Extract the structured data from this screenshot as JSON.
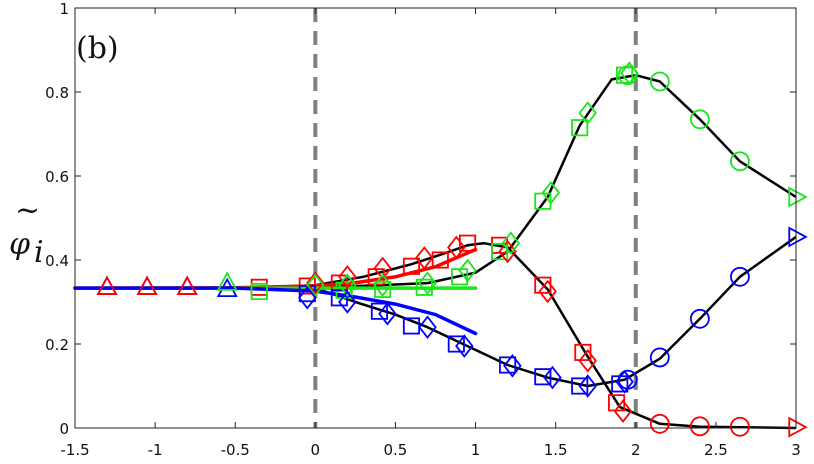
{
  "chart_data": {
    "type": "line",
    "panel_label": "(b)",
    "ylabel_symbol": "~",
    "ylabel_main": "φ",
    "ylabel_sub": "i",
    "xlim": [
      -1.5,
      3
    ],
    "ylim": [
      0,
      1
    ],
    "xticks": [
      -1.5,
      -1,
      -0.5,
      0,
      0.5,
      1,
      1.5,
      2,
      2.5,
      3
    ],
    "xtick_labels": [
      "-1.5",
      "-1",
      "-0.5",
      "0",
      "0.5",
      "1",
      "1.5",
      "2",
      "2.5",
      "3"
    ],
    "yticks": [
      0,
      0.2,
      0.4,
      0.6,
      0.8,
      1
    ],
    "ytick_labels": [
      "0",
      "0.2",
      "0.4",
      "0.6",
      "0.8",
      "1"
    ],
    "vlines": [
      0,
      2
    ],
    "colors": {
      "red": "#ff0000",
      "green": "#19e619",
      "blue": "#0000ff",
      "black": "#000000",
      "dashed": "#808080"
    },
    "black_lines": [
      [
        [
          -1.5,
          0.333
        ],
        [
          -1.0,
          0.333
        ],
        [
          -0.5,
          0.333
        ],
        [
          0,
          0.333
        ],
        [
          0.25,
          0.3
        ],
        [
          0.5,
          0.27
        ],
        [
          0.7,
          0.24
        ],
        [
          0.95,
          0.195
        ],
        [
          1.2,
          0.15
        ],
        [
          1.45,
          0.12
        ],
        [
          1.7,
          0.1
        ],
        [
          1.93,
          0.115
        ],
        [
          2.15,
          0.165
        ],
        [
          2.4,
          0.26
        ],
        [
          2.65,
          0.36
        ],
        [
          3.0,
          0.455
        ]
      ],
      [
        [
          -1.5,
          0.333
        ],
        [
          -0.5,
          0.333
        ],
        [
          0,
          0.34
        ],
        [
          0.3,
          0.36
        ],
        [
          0.6,
          0.39
        ],
        [
          0.8,
          0.415
        ],
        [
          0.95,
          0.435
        ],
        [
          1.05,
          0.44
        ],
        [
          1.2,
          0.43
        ],
        [
          1.45,
          0.33
        ],
        [
          1.7,
          0.17
        ],
        [
          1.9,
          0.05
        ],
        [
          2.15,
          0.01
        ],
        [
          2.4,
          0.003
        ],
        [
          3.0,
          0.0
        ]
      ],
      [
        [
          -1.5,
          0.333
        ],
        [
          -0.5,
          0.333
        ],
        [
          0,
          0.335
        ],
        [
          0.4,
          0.34
        ],
        [
          0.7,
          0.345
        ],
        [
          1.0,
          0.37
        ],
        [
          1.2,
          0.42
        ],
        [
          1.45,
          0.55
        ],
        [
          1.65,
          0.72
        ],
        [
          1.85,
          0.83
        ],
        [
          2.0,
          0.84
        ],
        [
          2.15,
          0.825
        ],
        [
          2.4,
          0.735
        ],
        [
          2.65,
          0.635
        ],
        [
          3.0,
          0.55
        ]
      ]
    ],
    "theory_lines": [
      {
        "color": "red",
        "points": [
          [
            -1.5,
            0.333
          ],
          [
            -0.5,
            0.334
          ],
          [
            0,
            0.338
          ],
          [
            0.25,
            0.346
          ],
          [
            0.5,
            0.36
          ],
          [
            0.75,
            0.384
          ],
          [
            1.0,
            0.425
          ]
        ]
      },
      {
        "color": "green",
        "points": [
          [
            -1.5,
            0.333
          ],
          [
            0,
            0.333
          ],
          [
            0.5,
            0.333
          ],
          [
            1.0,
            0.333
          ]
        ]
      },
      {
        "color": "blue",
        "points": [
          [
            -1.5,
            0.333
          ],
          [
            -0.5,
            0.333
          ],
          [
            0,
            0.326
          ],
          [
            0.25,
            0.312
          ],
          [
            0.5,
            0.295
          ],
          [
            0.75,
            0.27
          ],
          [
            1.0,
            0.225
          ]
        ]
      }
    ],
    "series": [
      {
        "marker": "triangle-up",
        "color": "blue",
        "points": [
          [
            -1.3,
            0.335
          ],
          [
            -1.05,
            0.335
          ],
          [
            -0.8,
            0.335
          ],
          [
            -0.55,
            0.33
          ]
        ]
      },
      {
        "marker": "triangle-up",
        "color": "red",
        "points": [
          [
            -1.3,
            0.335
          ],
          [
            -1.05,
            0.335
          ],
          [
            -0.8,
            0.335
          ]
        ]
      },
      {
        "marker": "triangle-up",
        "color": "green",
        "points": [
          [
            -0.55,
            0.345
          ]
        ]
      },
      {
        "marker": "square",
        "color": "red",
        "points": [
          [
            -0.35,
            0.335
          ],
          [
            -0.05,
            0.338
          ],
          [
            0.15,
            0.345
          ],
          [
            0.38,
            0.36
          ],
          [
            0.6,
            0.385
          ],
          [
            0.78,
            0.4
          ],
          [
            0.95,
            0.44
          ],
          [
            1.15,
            0.435
          ],
          [
            1.42,
            0.34
          ],
          [
            1.67,
            0.18
          ],
          [
            1.88,
            0.06
          ]
        ]
      },
      {
        "marker": "square",
        "color": "green",
        "points": [
          [
            -0.35,
            0.325
          ],
          [
            0.18,
            0.328
          ],
          [
            0.42,
            0.33
          ],
          [
            0.68,
            0.335
          ],
          [
            0.9,
            0.36
          ],
          [
            1.15,
            0.42
          ],
          [
            1.42,
            0.54
          ],
          [
            1.65,
            0.715
          ],
          [
            1.93,
            0.84
          ]
        ]
      },
      {
        "marker": "square",
        "color": "blue",
        "points": [
          [
            -0.05,
            0.32
          ],
          [
            0.15,
            0.31
          ],
          [
            0.4,
            0.278
          ],
          [
            0.6,
            0.243
          ],
          [
            0.88,
            0.2
          ],
          [
            1.2,
            0.15
          ],
          [
            1.42,
            0.122
          ],
          [
            1.65,
            0.1
          ],
          [
            1.9,
            0.105
          ]
        ]
      },
      {
        "marker": "diamond",
        "color": "red",
        "points": [
          [
            0.0,
            0.345
          ],
          [
            0.2,
            0.36
          ],
          [
            0.42,
            0.38
          ],
          [
            0.68,
            0.405
          ],
          [
            0.88,
            0.43
          ],
          [
            1.2,
            0.42
          ],
          [
            1.45,
            0.325
          ],
          [
            1.7,
            0.16
          ],
          [
            1.92,
            0.04
          ]
        ]
      },
      {
        "marker": "diamond",
        "color": "green",
        "points": [
          [
            0.0,
            0.34
          ],
          [
            0.2,
            0.34
          ],
          [
            0.42,
            0.34
          ],
          [
            0.7,
            0.345
          ],
          [
            0.95,
            0.375
          ],
          [
            1.22,
            0.44
          ],
          [
            1.47,
            0.56
          ],
          [
            1.7,
            0.75
          ],
          [
            1.96,
            0.845
          ]
        ]
      },
      {
        "marker": "diamond",
        "color": "blue",
        "points": [
          [
            -0.05,
            0.31
          ],
          [
            0.2,
            0.3
          ],
          [
            0.45,
            0.272
          ],
          [
            0.7,
            0.24
          ],
          [
            0.93,
            0.195
          ],
          [
            1.23,
            0.148
          ],
          [
            1.48,
            0.12
          ],
          [
            1.7,
            0.1
          ],
          [
            1.93,
            0.11
          ]
        ]
      },
      {
        "marker": "circle",
        "color": "green",
        "points": [
          [
            1.95,
            0.84
          ],
          [
            2.15,
            0.825
          ],
          [
            2.4,
            0.735
          ],
          [
            2.65,
            0.635
          ]
        ]
      },
      {
        "marker": "circle",
        "color": "blue",
        "points": [
          [
            1.95,
            0.115
          ],
          [
            2.15,
            0.168
          ],
          [
            2.4,
            0.26
          ],
          [
            2.65,
            0.36
          ]
        ]
      },
      {
        "marker": "circle",
        "color": "red",
        "points": [
          [
            2.15,
            0.01
          ],
          [
            2.4,
            0.004
          ],
          [
            2.65,
            0.003
          ]
        ]
      },
      {
        "marker": "triangle-right",
        "color": "green",
        "points": [
          [
            3.0,
            0.55
          ]
        ]
      },
      {
        "marker": "triangle-right",
        "color": "blue",
        "points": [
          [
            3.0,
            0.455
          ]
        ]
      },
      {
        "marker": "triangle-right",
        "color": "red",
        "points": [
          [
            3.0,
            0.002
          ]
        ]
      }
    ]
  }
}
